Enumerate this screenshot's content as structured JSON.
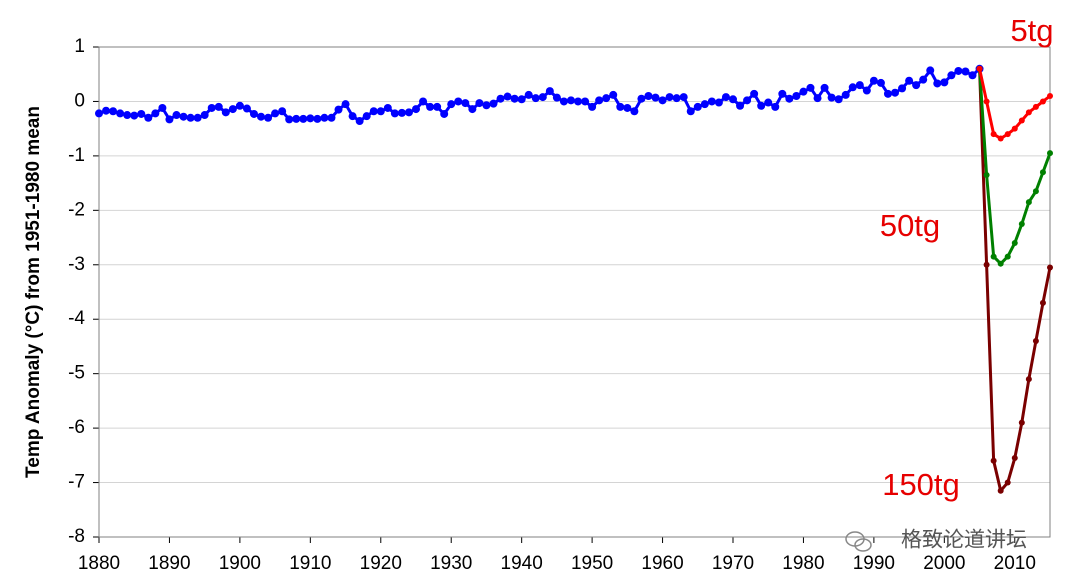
{
  "chart_data": {
    "type": "line",
    "y_label": "Temp Anomaly (°C) from 1951-1980 mean",
    "xlim": [
      1880,
      2015
    ],
    "xticks": [
      1880,
      1890,
      1900,
      1910,
      1920,
      1930,
      1940,
      1950,
      1960,
      1970,
      1980,
      1990,
      2000,
      2010
    ],
    "ylim": [
      -8,
      1
    ],
    "yticks": [
      1,
      0,
      -1,
      -2,
      -3,
      -4,
      -5,
      -6,
      -7,
      -8
    ],
    "grid": true,
    "annotations": [
      "5tg",
      "50tg",
      "150tg",
      "格致论道讲坛"
    ],
    "series": [
      {
        "color": "#0000ff",
        "x": [
          1880,
          1881,
          1882,
          1883,
          1884,
          1885,
          1886,
          1887,
          1888,
          1889,
          1890,
          1891,
          1892,
          1893,
          1894,
          1895,
          1896,
          1897,
          1898,
          1899,
          1900,
          1901,
          1902,
          1903,
          1904,
          1905,
          1906,
          1907,
          1908,
          1909,
          1910,
          1911,
          1912,
          1913,
          1914,
          1915,
          1916,
          1917,
          1918,
          1919,
          1920,
          1921,
          1922,
          1923,
          1924,
          1925,
          1926,
          1927,
          1928,
          1929,
          1930,
          1931,
          1932,
          1933,
          1934,
          1935,
          1936,
          1937,
          1938,
          1939,
          1940,
          1941,
          1942,
          1943,
          1944,
          1945,
          1946,
          1947,
          1948,
          1949,
          1950,
          1951,
          1952,
          1953,
          1954,
          1955,
          1956,
          1957,
          1958,
          1959,
          1960,
          1961,
          1962,
          1963,
          1964,
          1965,
          1966,
          1967,
          1968,
          1969,
          1970,
          1971,
          1972,
          1973,
          1974,
          1975,
          1976,
          1977,
          1978,
          1979,
          1980,
          1981,
          1982,
          1983,
          1984,
          1985,
          1986,
          1987,
          1988,
          1989,
          1990,
          1991,
          1992,
          1993,
          1994,
          1995,
          1996,
          1997,
          1998,
          1999,
          2000,
          2001,
          2002,
          2003,
          2004,
          2005
        ],
        "values": [
          -0.22,
          -0.17,
          -0.18,
          -0.22,
          -0.25,
          -0.26,
          -0.23,
          -0.3,
          -0.22,
          -0.12,
          -0.33,
          -0.25,
          -0.28,
          -0.3,
          -0.3,
          -0.25,
          -0.12,
          -0.1,
          -0.2,
          -0.14,
          -0.08,
          -0.13,
          -0.23,
          -0.28,
          -0.3,
          -0.22,
          -0.18,
          -0.33,
          -0.32,
          -0.32,
          -0.31,
          -0.32,
          -0.3,
          -0.3,
          -0.15,
          -0.05,
          -0.27,
          -0.36,
          -0.27,
          -0.18,
          -0.18,
          -0.12,
          -0.22,
          -0.21,
          -0.2,
          -0.14,
          0.0,
          -0.1,
          -0.1,
          -0.23,
          -0.05,
          0.0,
          -0.03,
          -0.14,
          -0.03,
          -0.07,
          -0.04,
          0.05,
          0.09,
          0.05,
          0.04,
          0.12,
          0.06,
          0.08,
          0.19,
          0.07,
          0.0,
          0.02,
          0.0,
          0.0,
          -0.1,
          0.02,
          0.06,
          0.12,
          -0.1,
          -0.12,
          -0.18,
          0.05,
          0.1,
          0.07,
          0.02,
          0.08,
          0.06,
          0.08,
          -0.18,
          -0.1,
          -0.05,
          0.0,
          -0.02,
          0.08,
          0.04,
          -0.08,
          0.02,
          0.14,
          -0.08,
          -0.02,
          -0.1,
          0.14,
          0.05,
          0.1,
          0.18,
          0.25,
          0.06,
          0.25,
          0.07,
          0.04,
          0.12,
          0.26,
          0.3,
          0.2,
          0.38,
          0.34,
          0.14,
          0.16,
          0.24,
          0.38,
          0.3,
          0.4,
          0.57,
          0.33,
          0.35,
          0.48,
          0.56,
          0.55,
          0.48,
          0.6
        ]
      },
      {
        "color": "#7a0000",
        "x": [
          2005,
          2006,
          2007,
          2008,
          2009,
          2010,
          2011,
          2012,
          2013,
          2014,
          2015
        ],
        "values": [
          0.6,
          -3.0,
          -6.6,
          -7.15,
          -7.0,
          -6.55,
          -5.9,
          -5.1,
          -4.4,
          -3.7,
          -3.05
        ]
      },
      {
        "color": "#008000",
        "x": [
          2005,
          2006,
          2007,
          2008,
          2009,
          2010,
          2011,
          2012,
          2013,
          2014,
          2015
        ],
        "values": [
          0.6,
          -1.35,
          -2.85,
          -2.98,
          -2.85,
          -2.6,
          -2.25,
          -1.85,
          -1.65,
          -1.3,
          -0.95
        ]
      },
      {
        "color": "#ff0000",
        "x": [
          2005,
          2006,
          2007,
          2008,
          2009,
          2010,
          2011,
          2012,
          2013,
          2014,
          2015
        ],
        "values": [
          0.6,
          0.0,
          -0.6,
          -0.68,
          -0.6,
          -0.5,
          -0.35,
          -0.2,
          -0.1,
          0.0,
          0.1
        ]
      }
    ]
  }
}
